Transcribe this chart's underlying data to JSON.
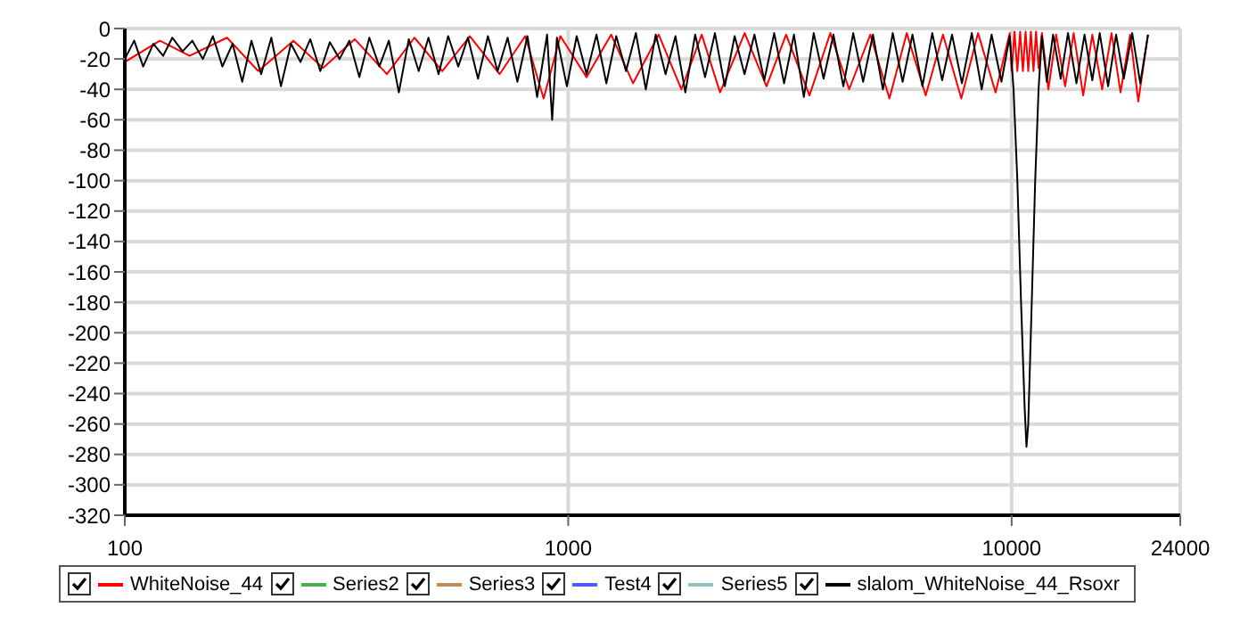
{
  "chart_data": {
    "type": "line",
    "log": "x",
    "grid": true,
    "legend": "bottom",
    "marker": "none",
    "line_style": "solid",
    "xlim": [
      100,
      24000
    ],
    "xticks": [
      100,
      1000,
      10000,
      24000
    ],
    "ylim": [
      -320,
      0
    ],
    "yticks": [
      -320,
      -300,
      -280,
      -260,
      -240,
      -220,
      -200,
      -180,
      -160,
      -140,
      -120,
      -100,
      -80,
      -60,
      -40,
      -20,
      0
    ],
    "series": [
      {
        "name": "WhiteNoise_44",
        "color": "#ff0000",
        "x": [
          100,
          120,
          140,
          170,
          200,
          240,
          280,
          330,
          390,
          450,
          520,
          600,
          700,
          800,
          880,
          960,
          1100,
          1250,
          1400,
          1600,
          1800,
          2000,
          2200,
          2500,
          2800,
          3100,
          3500,
          3900,
          4300,
          4800,
          5300,
          5800,
          6400,
          7000,
          7700,
          8400,
          9200,
          9900,
          10000,
          10150,
          10300,
          10450,
          10600,
          10750,
          10900,
          11050,
          11200,
          11350,
          11500,
          11700,
          12100,
          12600,
          13200,
          13800,
          14500,
          15200,
          16000,
          16800,
          17600,
          18500,
          19300,
          20300
        ],
        "values": [
          -22,
          -8,
          -18,
          -6,
          -28,
          -8,
          -26,
          -7,
          -30,
          -6,
          -28,
          -5,
          -30,
          -5,
          -46,
          -5,
          -32,
          -4,
          -36,
          -4,
          -40,
          -4,
          -42,
          -3,
          -38,
          -4,
          -44,
          -3,
          -40,
          -4,
          -46,
          -3,
          -44,
          -4,
          -46,
          -3,
          -42,
          -3,
          -28,
          -2,
          -28,
          -2,
          -28,
          -2,
          -28,
          -2,
          -28,
          -2,
          -26,
          -3,
          -40,
          -4,
          -38,
          -3,
          -44,
          -4,
          -40,
          -3,
          -42,
          -4,
          -48,
          -4
        ]
      },
      {
        "name": "Series2",
        "color": "#4caf50"
      },
      {
        "name": "Series3",
        "color": "#c08a5a"
      },
      {
        "name": "Test4",
        "color": "#5555ff"
      },
      {
        "name": "Series5",
        "color": "#8fbfc0"
      },
      {
        "name": "slalom_WhiteNoise_44_Rsoxr",
        "color": "#000000",
        "x": [
          100,
          105,
          110,
          116,
          122,
          128,
          135,
          142,
          150,
          158,
          166,
          175,
          184,
          193,
          203,
          214,
          225,
          237,
          249,
          262,
          276,
          290,
          305,
          321,
          338,
          356,
          375,
          394,
          415,
          437,
          460,
          484,
          510,
          536,
          565,
          594,
          626,
          659,
          693,
          730,
          768,
          809,
          851,
          896,
          920,
          943,
          993,
          1045,
          1100,
          1158,
          1219,
          1283,
          1350,
          1421,
          1496,
          1575,
          1658,
          1745,
          1837,
          1933,
          2035,
          2142,
          2255,
          2373,
          2498,
          2630,
          2768,
          2914,
          3067,
          3229,
          3399,
          3578,
          3766,
          3964,
          4173,
          4393,
          4624,
          4867,
          5124,
          5393,
          5677,
          5976,
          6291,
          6622,
          6971,
          7338,
          7724,
          8131,
          8559,
          9010,
          9484,
          9900,
          10100,
          10300,
          10500,
          10700,
          10800,
          10900,
          11100,
          11300,
          11500,
          11700,
          12000,
          12400,
          12900,
          13400,
          14000,
          14600,
          15200,
          15800,
          16500,
          17200,
          17900,
          18700,
          19500,
          20300
        ],
        "values": [
          -20,
          -8,
          -25,
          -10,
          -18,
          -6,
          -15,
          -8,
          -20,
          -5,
          -25,
          -10,
          -35,
          -8,
          -30,
          -6,
          -38,
          -10,
          -22,
          -7,
          -28,
          -9,
          -20,
          -8,
          -32,
          -6,
          -25,
          -8,
          -42,
          -7,
          -28,
          -6,
          -30,
          -5,
          -25,
          -6,
          -33,
          -5,
          -28,
          -6,
          -35,
          -5,
          -45,
          -4,
          -60,
          -6,
          -38,
          -5,
          -30,
          -4,
          -36,
          -5,
          -28,
          -3,
          -40,
          -4,
          -30,
          -5,
          -42,
          -4,
          -32,
          -3,
          -38,
          -5,
          -30,
          -4,
          -34,
          -3,
          -36,
          -4,
          -45,
          -3,
          -33,
          -4,
          -38,
          -3,
          -35,
          -4,
          -40,
          -3,
          -35,
          -4,
          -38,
          -3,
          -34,
          -4,
          -36,
          -3,
          -40,
          -4,
          -35,
          -5,
          -40,
          -100,
          -180,
          -250,
          -275,
          -260,
          -180,
          -100,
          -40,
          -5,
          -35,
          -4,
          -33,
          -3,
          -36,
          -4,
          -34,
          -3,
          -38,
          -4,
          -33,
          -3,
          -36,
          -4
        ]
      }
    ]
  }
}
